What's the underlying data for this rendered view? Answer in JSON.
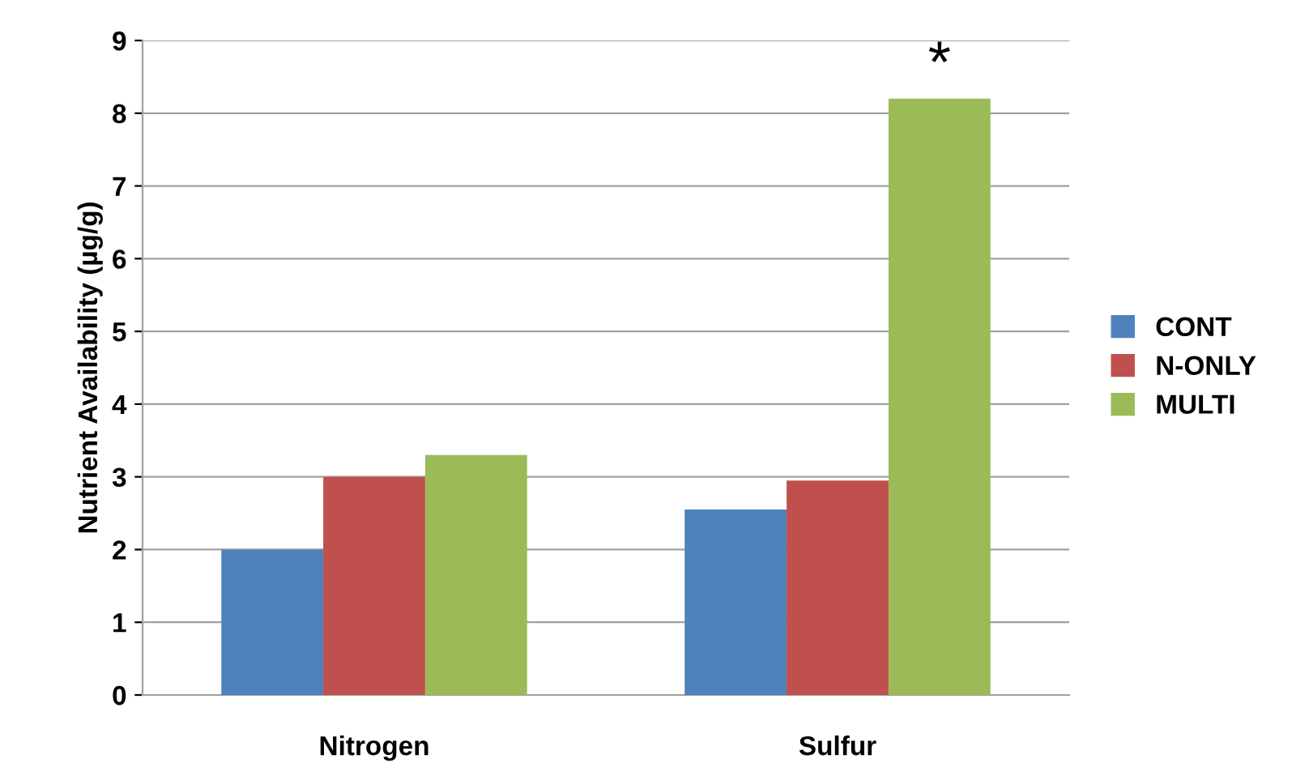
{
  "chart_data": {
    "type": "bar",
    "ylabel": "Nutrient Availability (µg/g)",
    "categories": [
      "Nitrogen",
      "Sulfur"
    ],
    "series": [
      {
        "name": "CONT",
        "color": "#4f81bd",
        "values": [
          2.0,
          2.55
        ]
      },
      {
        "name": "N-ONLY",
        "color": "#c0504d",
        "values": [
          3.0,
          2.95
        ]
      },
      {
        "name": "MULTI",
        "color": "#9bbb59",
        "values": [
          3.3,
          8.2
        ]
      }
    ],
    "ylim": [
      0,
      9
    ],
    "yticks": [
      0,
      1,
      2,
      3,
      4,
      5,
      6,
      7,
      8,
      9
    ],
    "grid": "y",
    "legend": "right",
    "annotations": [
      "*"
    ]
  }
}
